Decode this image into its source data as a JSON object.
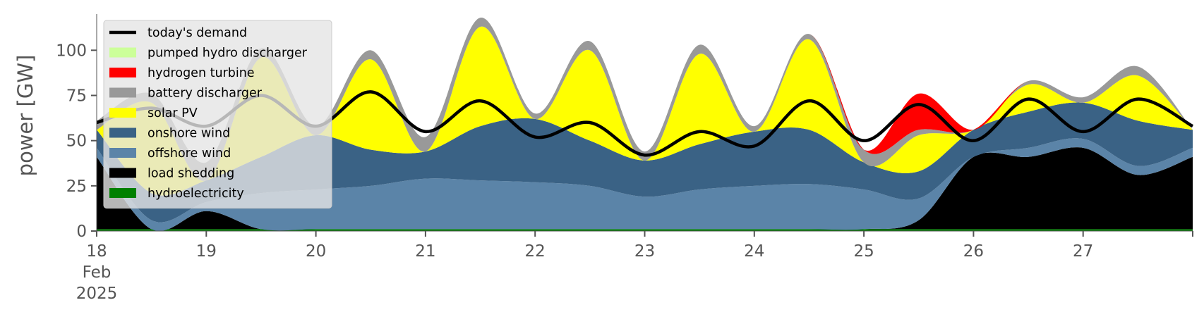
{
  "chart_data": {
    "type": "area",
    "stacked": true,
    "ylabel": "power [GW]",
    "xlabel": "",
    "ylim": [
      0,
      120
    ],
    "yticks": [
      0,
      25,
      50,
      75,
      100
    ],
    "x_start": "2025-02-18",
    "x_end": "2025-02-28",
    "x_tick_labels": [
      {
        "date": "2025-02-18",
        "label": "18",
        "sub1": "Feb",
        "sub2": "2025"
      },
      {
        "date": "2025-02-19",
        "label": "19"
      },
      {
        "date": "2025-02-20",
        "label": "20"
      },
      {
        "date": "2025-02-21",
        "label": "21"
      },
      {
        "date": "2025-02-22",
        "label": "22"
      },
      {
        "date": "2025-02-23",
        "label": "23"
      },
      {
        "date": "2025-02-24",
        "label": "24"
      },
      {
        "date": "2025-02-25",
        "label": "25"
      },
      {
        "date": "2025-02-26",
        "label": "26"
      },
      {
        "date": "2025-02-27",
        "label": "27"
      }
    ],
    "grid": false,
    "legend_position": "upper-left",
    "series_x_days": [
      "2025-02-18",
      "2025-02-18 12:00",
      "2025-02-19",
      "2025-02-19 12:00",
      "2025-02-20",
      "2025-02-20 12:00",
      "2025-02-21",
      "2025-02-21 12:00",
      "2025-02-22",
      "2025-02-22 12:00",
      "2025-02-23",
      "2025-02-23 12:00",
      "2025-02-24",
      "2025-02-24 12:00",
      "2025-02-25",
      "2025-02-25 12:00",
      "2025-02-26",
      "2025-02-26 12:00",
      "2025-02-27",
      "2025-02-27 12:00",
      "2025-02-28"
    ],
    "series": [
      {
        "name": "hydroelectricity",
        "color": "#008000",
        "values": [
          1,
          1,
          1,
          1,
          1,
          1,
          1,
          1,
          1,
          1,
          1,
          1,
          1,
          1,
          1,
          1,
          1,
          1,
          1,
          1,
          1
        ]
      },
      {
        "name": "load shedding",
        "color": "#000000",
        "values": [
          40,
          0,
          10,
          0,
          0,
          0,
          0,
          0,
          0,
          0,
          0,
          0,
          0,
          0,
          0,
          5,
          40,
          40,
          45,
          30,
          40
        ]
      },
      {
        "name": "offshore wind",
        "color": "#5b84a8",
        "values": [
          5,
          5,
          5,
          20,
          22,
          24,
          28,
          27,
          26,
          24,
          18,
          22,
          24,
          25,
          22,
          12,
          0,
          5,
          5,
          5,
          5
        ]
      },
      {
        "name": "onshore wind",
        "color": "#3a6285",
        "values": [
          10,
          15,
          12,
          20,
          30,
          20,
          15,
          30,
          35,
          25,
          20,
          25,
          30,
          30,
          15,
          15,
          15,
          20,
          20,
          25,
          10
        ]
      },
      {
        "name": "solar PV",
        "color": "#ffff00",
        "values": [
          0,
          50,
          0,
          55,
          0,
          50,
          0,
          55,
          0,
          50,
          0,
          50,
          0,
          50,
          0,
          20,
          0,
          15,
          0,
          25,
          0
        ]
      },
      {
        "name": "battery discharger",
        "color": "#999999",
        "values": [
          5,
          5,
          10,
          5,
          5,
          5,
          8,
          5,
          3,
          5,
          5,
          5,
          3,
          3,
          7,
          3,
          0,
          2,
          3,
          5,
          0
        ]
      },
      {
        "name": "hydrogen turbine",
        "color": "#ff0000",
        "values": [
          0,
          0,
          0,
          0,
          0,
          0,
          0,
          0,
          0,
          0,
          0,
          0,
          0,
          0,
          0,
          20,
          0,
          0,
          0,
          0,
          0
        ]
      },
      {
        "name": "pumped hydro discharger",
        "color": "#ccff99",
        "values": [
          0,
          0,
          0,
          0,
          0,
          0,
          0,
          0,
          0,
          0,
          0,
          0,
          0,
          0,
          0,
          0,
          0,
          0,
          0,
          0,
          0
        ]
      }
    ],
    "demand": {
      "name": "today's demand",
      "color": "#000000",
      "values": [
        60,
        68,
        58,
        75,
        58,
        77,
        55,
        72,
        52,
        60,
        42,
        55,
        47,
        72,
        50,
        70,
        50,
        73,
        55,
        73,
        58
      ]
    },
    "legend": [
      {
        "name": "today's demand",
        "kind": "line",
        "color": "#000000"
      },
      {
        "name": "pumped hydro discharger",
        "kind": "patch",
        "color": "#ccff99"
      },
      {
        "name": "hydrogen turbine",
        "kind": "patch",
        "color": "#ff0000"
      },
      {
        "name": "battery discharger",
        "kind": "patch",
        "color": "#999999"
      },
      {
        "name": "solar PV",
        "kind": "patch",
        "color": "#ffff00"
      },
      {
        "name": "onshore wind",
        "kind": "patch",
        "color": "#3a6285"
      },
      {
        "name": "offshore wind",
        "kind": "patch",
        "color": "#5b84a8"
      },
      {
        "name": "load shedding",
        "kind": "patch",
        "color": "#000000"
      },
      {
        "name": "hydroelectricity",
        "kind": "patch",
        "color": "#008000"
      }
    ]
  }
}
